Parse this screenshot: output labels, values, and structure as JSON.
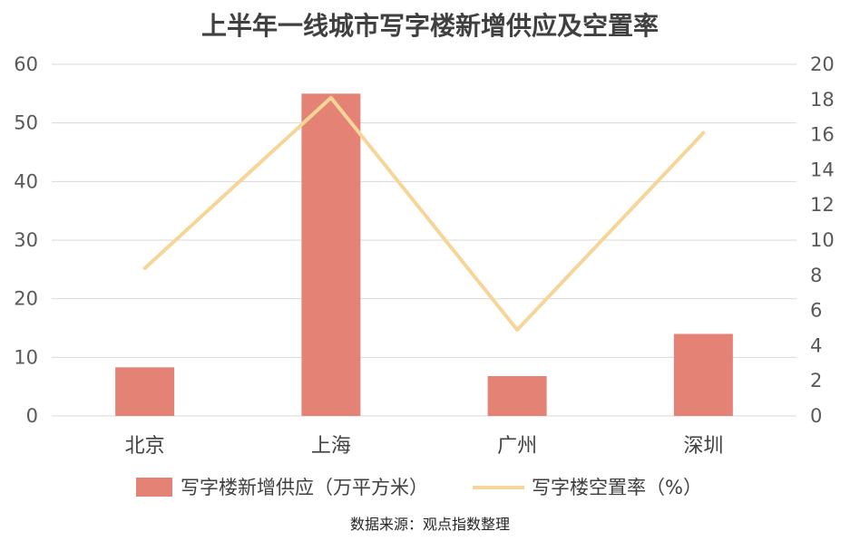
{
  "chart_data": {
    "type": "bar",
    "title": "上半年一线城市写字楼新增供应及空置率",
    "categories": [
      "北京",
      "上海",
      "广州",
      "深圳"
    ],
    "series": [
      {
        "name": "写字楼新增供应（万平方米）",
        "type": "bar",
        "axis": "left",
        "values": [
          8.3,
          55,
          6.8,
          14
        ]
      },
      {
        "name": "写字楼空置率（%）",
        "type": "line",
        "axis": "right",
        "values": [
          8.4,
          18.1,
          4.9,
          16.1
        ]
      }
    ],
    "y_left": {
      "min": 0,
      "max": 60,
      "ticks": [
        "0",
        "10",
        "20",
        "30",
        "40",
        "50",
        "60"
      ]
    },
    "y_right": {
      "min": 0,
      "max": 20,
      "ticks": [
        "0",
        "2",
        "4",
        "6",
        "8",
        "10",
        "12",
        "14",
        "16",
        "18",
        "20"
      ]
    },
    "grid": true,
    "legend_position": "bottom",
    "colors": {
      "bar": "#E48375",
      "line": "#F6D598",
      "grid": "#D9D9D9"
    }
  },
  "source_note": "数据来源：观点指数整理"
}
